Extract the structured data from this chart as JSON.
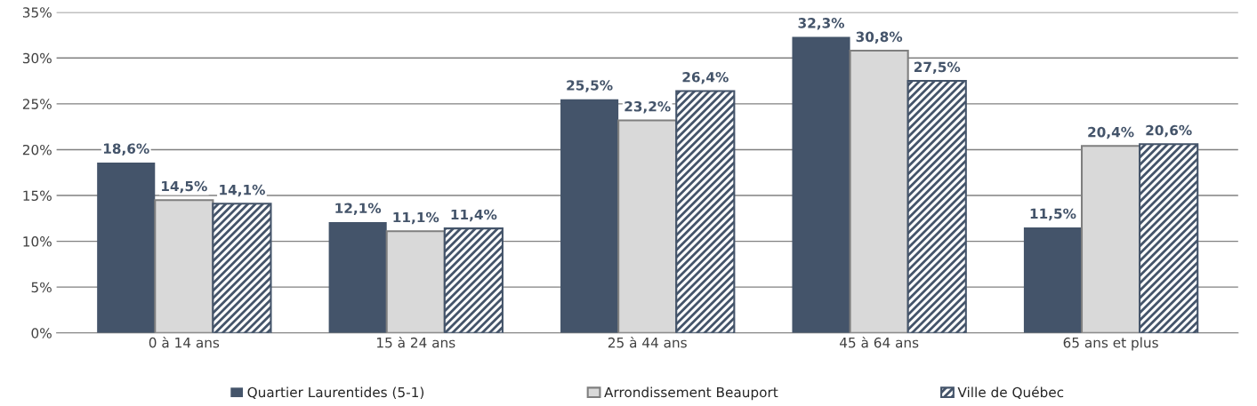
{
  "chart_data": {
    "type": "bar",
    "categories": [
      "0 à 14 ans",
      "15 à 24 ans",
      "25 à 44 ans",
      "45 à 64 ans",
      "65 ans et plus"
    ],
    "series": [
      {
        "name": "Quartier Laurentides (5-1)",
        "color": "#44546a",
        "values": [
          18.6,
          12.1,
          25.5,
          32.3,
          11.5
        ],
        "value_labels": [
          "18,6%",
          "12,1%",
          "25,5%",
          "32,3%",
          "11,5%"
        ]
      },
      {
        "name": "Arrondissement Beauport",
        "color": "#d9d9d9",
        "values": [
          14.5,
          11.1,
          23.2,
          30.8,
          20.4
        ],
        "value_labels": [
          "14,5%",
          "11,1%",
          "23,2%",
          "30,8%",
          "20,4%"
        ]
      },
      {
        "name": "Ville de Québec",
        "color": "#44546a",
        "values": [
          14.1,
          11.4,
          26.4,
          27.5,
          20.6
        ],
        "value_labels": [
          "14,1%",
          "11,4%",
          "26,4%",
          "27,5%",
          "20,6%"
        ]
      }
    ],
    "ylim": [
      0,
      35
    ],
    "yticks": [
      {
        "value": 0,
        "label": "0%"
      },
      {
        "value": 5,
        "label": "5%"
      },
      {
        "value": 10,
        "label": "10%"
      },
      {
        "value": 15,
        "label": "15%"
      },
      {
        "value": 20,
        "label": "20%"
      },
      {
        "value": 25,
        "label": "25%"
      },
      {
        "value": 30,
        "label": "30%"
      },
      {
        "value": 35,
        "label": "35%"
      }
    ],
    "grid": "y",
    "legend": "bottom"
  }
}
